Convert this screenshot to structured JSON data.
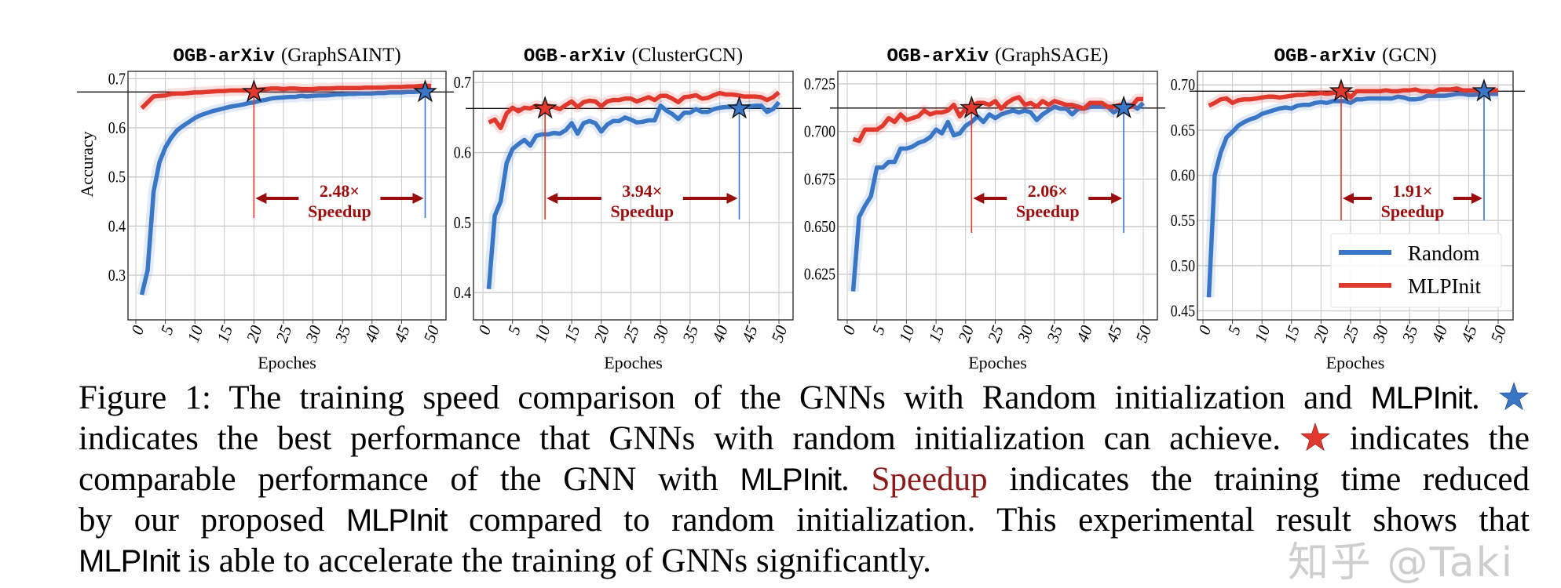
{
  "chart_data": [
    {
      "type": "line",
      "title_mono": "OGB-arXiv",
      "title_paren": "(GraphSAINT)",
      "xlabel": "Epoches",
      "ylabel": "Accuracy",
      "xlim": [
        0,
        50
      ],
      "xticks": [
        "0",
        "5",
        "10",
        "15",
        "20",
        "25",
        "30",
        "35",
        "40",
        "45",
        "50"
      ],
      "ylim": [
        0.209,
        0.715
      ],
      "yticks": [
        {
          "v": 0.3,
          "label": "0.3"
        },
        {
          "v": 0.4,
          "label": "0.4"
        },
        {
          "v": 0.5,
          "label": "0.5"
        },
        {
          "v": 0.6,
          "label": "0.6"
        },
        {
          "v": 0.7,
          "label": "0.7"
        }
      ],
      "grid": true,
      "reference_accuracy": 0.673,
      "mlpinit_star_epoch": 20,
      "random_star_epoch": 49,
      "speedup_value": "2.48×",
      "speedup_label": "Speedup",
      "series": [
        {
          "name": "Random",
          "color": "#3a76c6",
          "values": [
            0.26,
            0.31,
            0.47,
            0.53,
            0.56,
            0.58,
            0.595,
            0.604,
            0.612,
            0.62,
            0.626,
            0.63,
            0.634,
            0.637,
            0.64,
            0.643,
            0.645,
            0.647,
            0.65,
            0.652,
            0.655,
            0.657,
            0.66,
            0.661,
            0.662,
            0.663,
            0.663,
            0.665,
            0.664,
            0.665,
            0.666,
            0.666,
            0.667,
            0.668,
            0.668,
            0.669,
            0.669,
            0.67,
            0.67,
            0.67,
            0.671,
            0.671,
            0.672,
            0.672,
            0.672,
            0.673,
            0.673,
            0.674,
            0.674,
            0.675
          ]
        },
        {
          "name": "MLPInit",
          "color": "#e0382c",
          "values": [
            0.64,
            0.652,
            0.664,
            0.665,
            0.666,
            0.669,
            0.67,
            0.67,
            0.671,
            0.672,
            0.672,
            0.673,
            0.674,
            0.675,
            0.675,
            0.676,
            0.676,
            0.676,
            0.676,
            0.677,
            0.678,
            0.679,
            0.68,
            0.68,
            0.679,
            0.68,
            0.68,
            0.679,
            0.679,
            0.679,
            0.68,
            0.68,
            0.68,
            0.681,
            0.681,
            0.681,
            0.681,
            0.681,
            0.682,
            0.682,
            0.682,
            0.682,
            0.683,
            0.683,
            0.683,
            0.684,
            0.684,
            0.685,
            0.686,
            0.685
          ]
        }
      ]
    },
    {
      "type": "line",
      "title_mono": "OGB-arXiv",
      "title_paren": "(ClusterGCN)",
      "xlabel": "Epoches",
      "xlim": [
        0,
        50
      ],
      "xticks": [
        "0",
        "5",
        "10",
        "15",
        "20",
        "25",
        "30",
        "35",
        "40",
        "45",
        "50"
      ],
      "ylim": [
        0.361,
        0.716
      ],
      "yticks": [
        {
          "v": 0.4,
          "label": "0.4"
        },
        {
          "v": 0.5,
          "label": "0.5"
        },
        {
          "v": 0.6,
          "label": "0.6"
        },
        {
          "v": 0.7,
          "label": "0.7"
        }
      ],
      "grid": true,
      "reference_accuracy": 0.663,
      "mlpinit_star_epoch": 10.5,
      "random_star_epoch": 43.3,
      "speedup_value": "3.94×",
      "speedup_label": "Speedup",
      "series": [
        {
          "name": "Random",
          "color": "#3a76c6",
          "values": [
            0.405,
            0.51,
            0.53,
            0.585,
            0.605,
            0.612,
            0.618,
            0.61,
            0.624,
            0.626,
            0.626,
            0.628,
            0.627,
            0.632,
            0.642,
            0.627,
            0.642,
            0.645,
            0.642,
            0.63,
            0.64,
            0.645,
            0.645,
            0.65,
            0.647,
            0.643,
            0.644,
            0.646,
            0.646,
            0.667,
            0.66,
            0.655,
            0.648,
            0.657,
            0.657,
            0.662,
            0.658,
            0.658,
            0.662,
            0.664,
            0.665,
            0.665,
            0.667,
            0.665,
            0.666,
            0.667,
            0.667,
            0.658,
            0.662,
            0.672
          ]
        },
        {
          "name": "MLPInit",
          "color": "#e0382c",
          "values": [
            0.643,
            0.647,
            0.635,
            0.656,
            0.664,
            0.659,
            0.664,
            0.663,
            0.667,
            0.665,
            0.667,
            0.665,
            0.662,
            0.668,
            0.673,
            0.665,
            0.672,
            0.674,
            0.673,
            0.666,
            0.673,
            0.675,
            0.675,
            0.677,
            0.677,
            0.673,
            0.676,
            0.679,
            0.675,
            0.681,
            0.681,
            0.677,
            0.672,
            0.679,
            0.68,
            0.682,
            0.677,
            0.678,
            0.682,
            0.685,
            0.683,
            0.683,
            0.682,
            0.68,
            0.68,
            0.68,
            0.679,
            0.675,
            0.679,
            0.686
          ]
        }
      ]
    },
    {
      "type": "line",
      "title_mono": "OGB-arXiv",
      "title_paren": "(GraphSAGE)",
      "xlabel": "Epoches",
      "xlim": [
        0,
        50
      ],
      "xticks": [
        "0",
        "5",
        "10",
        "15",
        "20",
        "25",
        "30",
        "35",
        "40",
        "45",
        "50"
      ],
      "ylim": [
        0.601,
        0.7316
      ],
      "yticks": [
        {
          "v": 0.625,
          "label": "0.625"
        },
        {
          "v": 0.65,
          "label": "0.650"
        },
        {
          "v": 0.675,
          "label": "0.675"
        },
        {
          "v": 0.7,
          "label": "0.700"
        },
        {
          "v": 0.725,
          "label": "0.725"
        }
      ],
      "grid": true,
      "reference_accuracy": 0.7123,
      "mlpinit_star_epoch": 21,
      "random_star_epoch": 46.7,
      "speedup_value": "2.06×",
      "speedup_label": "Speedup",
      "series": [
        {
          "name": "Random",
          "color": "#3a76c6",
          "values": [
            0.616,
            0.655,
            0.661,
            0.666,
            0.681,
            0.681,
            0.684,
            0.684,
            0.691,
            0.691,
            0.692,
            0.694,
            0.695,
            0.697,
            0.701,
            0.699,
            0.705,
            0.698,
            0.699,
            0.703,
            0.705,
            0.708,
            0.705,
            0.709,
            0.707,
            0.709,
            0.71,
            0.711,
            0.71,
            0.711,
            0.71,
            0.706,
            0.709,
            0.711,
            0.713,
            0.712,
            0.712,
            0.709,
            0.712,
            0.712,
            0.713,
            0.713,
            0.713,
            0.713,
            0.71,
            0.712,
            0.714,
            0.714,
            0.712,
            0.715
          ]
        },
        {
          "name": "MLPInit",
          "color": "#e0382c",
          "values": [
            0.696,
            0.695,
            0.701,
            0.701,
            0.701,
            0.703,
            0.707,
            0.705,
            0.709,
            0.706,
            0.707,
            0.708,
            0.711,
            0.709,
            0.71,
            0.71,
            0.711,
            0.714,
            0.708,
            0.712,
            0.713,
            0.715,
            0.715,
            0.714,
            0.716,
            0.712,
            0.715,
            0.717,
            0.718,
            0.714,
            0.715,
            0.713,
            0.716,
            0.714,
            0.716,
            0.715,
            0.714,
            0.714,
            0.713,
            0.712,
            0.715,
            0.715,
            0.715,
            0.713,
            0.713,
            0.714,
            0.713,
            0.713,
            0.717,
            0.717
          ]
        }
      ]
    },
    {
      "type": "line",
      "title_mono": "OGB-arXiv",
      "title_paren": "(GCN)",
      "xlabel": "Epoches",
      "xlim": [
        0,
        50
      ],
      "xticks": [
        "0",
        "5",
        "10",
        "15",
        "20",
        "25",
        "30",
        "35",
        "40",
        "45",
        "50"
      ],
      "ylim": [
        0.44,
        0.715
      ],
      "yticks": [
        {
          "v": 0.45,
          "label": "0.45"
        },
        {
          "v": 0.5,
          "label": "0.50"
        },
        {
          "v": 0.55,
          "label": "0.55"
        },
        {
          "v": 0.6,
          "label": "0.60"
        },
        {
          "v": 0.65,
          "label": "0.65"
        },
        {
          "v": 0.7,
          "label": "0.70"
        }
      ],
      "grid": true,
      "reference_accuracy": 0.693,
      "mlpinit_star_epoch": 23.4,
      "random_star_epoch": 47.6,
      "speedup_value": "1.91×",
      "speedup_label": "Speedup",
      "legend": {
        "position": "lower-right",
        "entries": [
          "Random",
          "MLPInit"
        ]
      },
      "series": [
        {
          "name": "Random",
          "color": "#3a76c6",
          "values": [
            0.465,
            0.6,
            0.625,
            0.642,
            0.648,
            0.655,
            0.659,
            0.662,
            0.664,
            0.668,
            0.67,
            0.672,
            0.674,
            0.675,
            0.674,
            0.677,
            0.678,
            0.678,
            0.68,
            0.681,
            0.68,
            0.682,
            0.682,
            0.682,
            0.68,
            0.684,
            0.684,
            0.685,
            0.685,
            0.685,
            0.685,
            0.685,
            0.687,
            0.686,
            0.684,
            0.684,
            0.685,
            0.688,
            0.688,
            0.688,
            0.688,
            0.689,
            0.69,
            0.69,
            0.689,
            0.689,
            0.69,
            0.69,
            0.69,
            0.69
          ]
        },
        {
          "name": "MLPInit",
          "color": "#e0382c",
          "values": [
            0.677,
            0.68,
            0.684,
            0.685,
            0.68,
            0.683,
            0.684,
            0.684,
            0.685,
            0.686,
            0.687,
            0.687,
            0.686,
            0.687,
            0.688,
            0.689,
            0.689,
            0.69,
            0.69,
            0.691,
            0.69,
            0.691,
            0.692,
            0.693,
            0.686,
            0.693,
            0.693,
            0.693,
            0.693,
            0.693,
            0.694,
            0.693,
            0.693,
            0.694,
            0.694,
            0.695,
            0.693,
            0.693,
            0.692,
            0.695,
            0.695,
            0.695,
            0.696,
            0.694,
            0.694,
            0.694,
            0.694,
            0.694,
            0.694,
            0.694
          ]
        }
      ]
    }
  ],
  "caption": {
    "l1a": "Figure 1: The training speed comparison of the GNNs with Random initialization and",
    "l1b": "MLPInit",
    "l1c": ".",
    "l2a": "indicates the best performance that GNNs with random initialization can achieve.",
    "l2b": "indicates the",
    "l3a": "comparable performance of the GNN with",
    "l3b": "MLPInit",
    "l3c": ".",
    "l3d": "Speedup",
    "l3e": "indicates the training time reduced",
    "l4a": "by our proposed",
    "l4b": "MLPInit",
    "l4c": "compared to random initialization.  This experimental result shows that",
    "l5a": "MLPInit",
    "l5b": "is able to accelerate the training of GNNs significantly.",
    "blue_star_color": "#3a76c6",
    "red_star_color": "#e0382c",
    "speedup_color": "#8b1a1a"
  },
  "watermark": "知乎 @Taki"
}
